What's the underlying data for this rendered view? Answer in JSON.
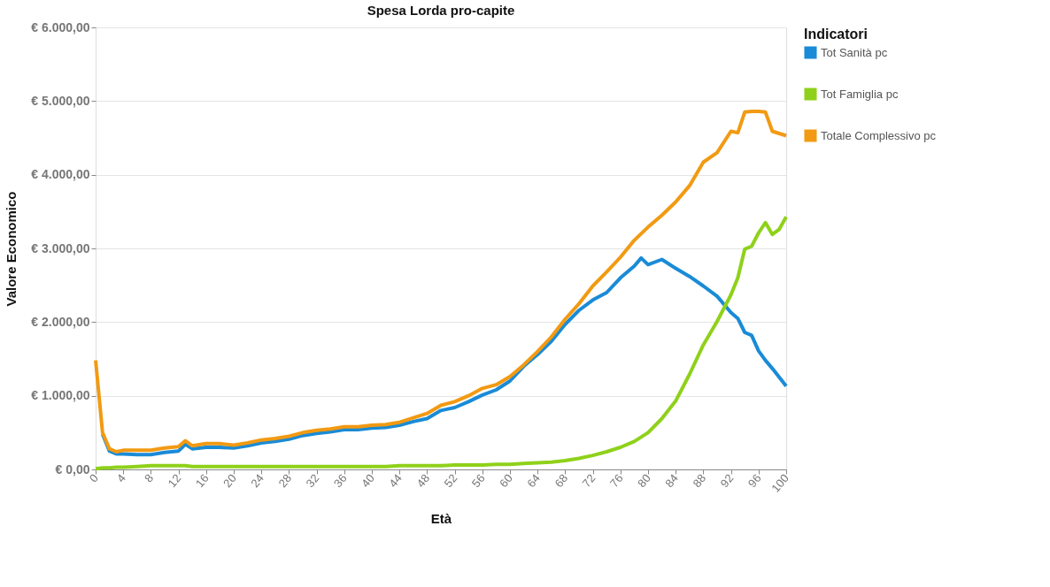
{
  "chart_data": {
    "type": "line",
    "title": "Spesa Lorda pro-capite",
    "xlabel": "Età",
    "ylabel": "Valore Economico",
    "legend_title": "Indicatori",
    "x": [
      0,
      1,
      2,
      3,
      4,
      6,
      8,
      10,
      12,
      13,
      14,
      16,
      18,
      20,
      22,
      24,
      26,
      28,
      30,
      32,
      34,
      36,
      38,
      40,
      42,
      44,
      46,
      48,
      50,
      52,
      54,
      56,
      58,
      60,
      62,
      64,
      66,
      68,
      70,
      72,
      74,
      76,
      78,
      79,
      80,
      82,
      84,
      86,
      88,
      90,
      92,
      93,
      94,
      95,
      96,
      97,
      98,
      99,
      100
    ],
    "series": [
      {
        "name": "Tot Sanità pc",
        "color": "#1a8bd6",
        "values": [
          null,
          480,
          250,
          210,
          210,
          200,
          200,
          230,
          250,
          340,
          280,
          300,
          300,
          290,
          320,
          360,
          380,
          410,
          460,
          490,
          510,
          540,
          540,
          560,
          570,
          600,
          650,
          690,
          800,
          840,
          920,
          1010,
          1080,
          1200,
          1400,
          1560,
          1740,
          1970,
          2160,
          2300,
          2400,
          2600,
          2760,
          2870,
          2780,
          2850,
          2730,
          2620,
          2490,
          2350,
          2130,
          2050,
          1860,
          1820,
          1610,
          1480,
          1370,
          1250,
          1130
        ]
      },
      {
        "name": "Tot Famiglia pc",
        "color": "#8fd11a",
        "values": [
          10,
          20,
          20,
          30,
          30,
          40,
          50,
          50,
          50,
          50,
          40,
          40,
          40,
          40,
          40,
          40,
          40,
          40,
          40,
          40,
          40,
          40,
          40,
          40,
          40,
          50,
          50,
          50,
          50,
          60,
          60,
          60,
          70,
          70,
          80,
          90,
          100,
          120,
          150,
          190,
          240,
          300,
          380,
          440,
          500,
          690,
          930,
          1290,
          1690,
          2010,
          2370,
          2600,
          2990,
          3030,
          3210,
          3350,
          3190,
          3260,
          3430
        ]
      },
      {
        "name": "Totale Complessivo pc",
        "color": "#f29a12",
        "values": [
          1480,
          500,
          280,
          240,
          260,
          260,
          260,
          290,
          310,
          390,
          320,
          350,
          350,
          330,
          360,
          400,
          420,
          450,
          500,
          530,
          550,
          580,
          580,
          600,
          610,
          640,
          700,
          760,
          870,
          920,
          1000,
          1100,
          1150,
          1260,
          1420,
          1600,
          1800,
          2040,
          2250,
          2490,
          2680,
          2880,
          3110,
          3200,
          3290,
          3450,
          3630,
          3850,
          4170,
          4300,
          4590,
          4570,
          4850,
          4860,
          4860,
          4850,
          4590,
          4560,
          4530
        ]
      }
    ],
    "xlim": [
      0,
      100
    ],
    "xticks": [
      0,
      4,
      8,
      12,
      16,
      20,
      24,
      28,
      32,
      36,
      40,
      44,
      48,
      52,
      56,
      60,
      64,
      68,
      72,
      76,
      80,
      84,
      88,
      92,
      96,
      100
    ],
    "ylim": [
      0,
      6000
    ],
    "yticks": [
      {
        "value": 0,
        "label": "€ 0,00"
      },
      {
        "value": 1000,
        "label": "€ 1.000,00"
      },
      {
        "value": 2000,
        "label": "€ 2.000,00"
      },
      {
        "value": 3000,
        "label": "€ 3.000,00"
      },
      {
        "value": 4000,
        "label": "€ 4.000,00"
      },
      {
        "value": 5000,
        "label": "€ 5.000,00"
      },
      {
        "value": 6000,
        "label": "€ 6.000,00"
      }
    ],
    "grid": "y",
    "legend": "right",
    "marker": "none",
    "line_style": "solid"
  }
}
